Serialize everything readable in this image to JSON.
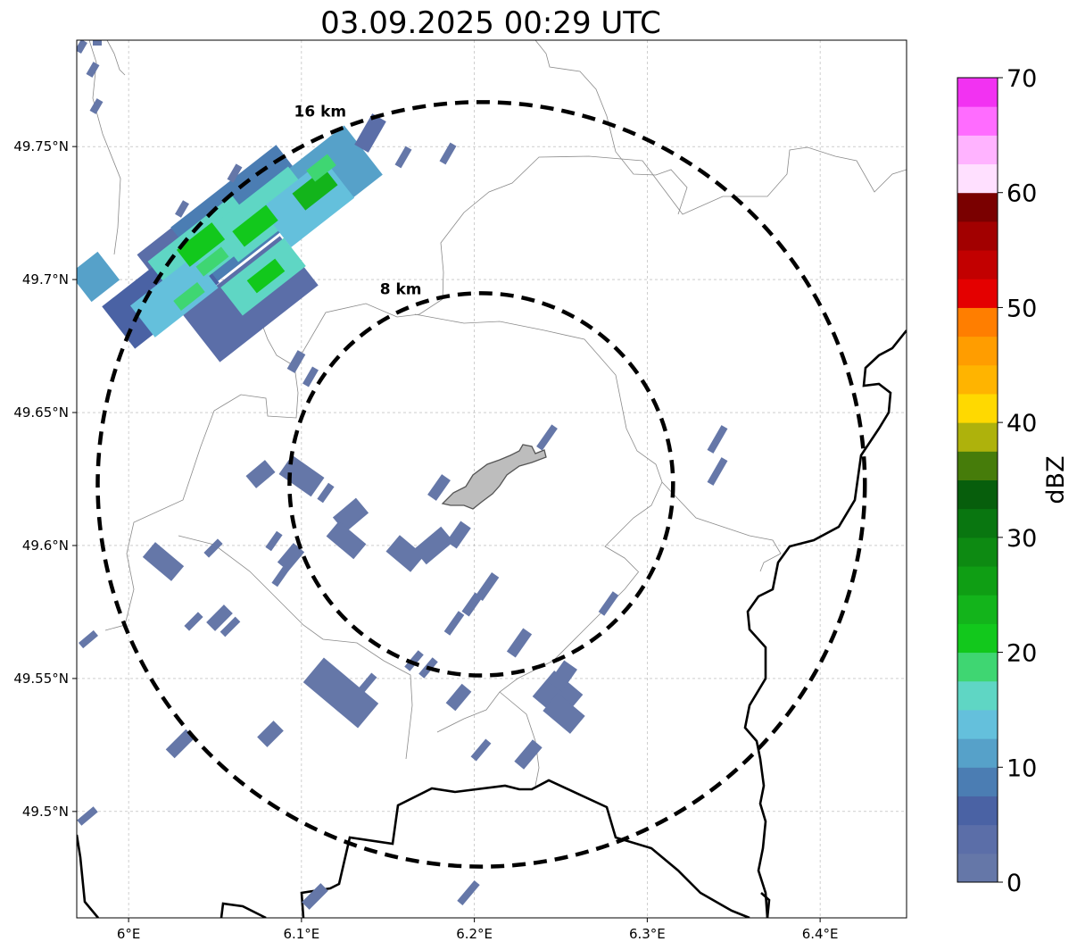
{
  "title": "03.09.2025 00:29 UTC",
  "colors": {
    "echo_weak": "#6577a8",
    "echo_mid": "#4f7fb4",
    "echo_cyan": "#5ec7c6",
    "echo_teal": "#5fd6bd",
    "echo_lightgreen": "#3fd46a",
    "echo_green": "#12c21b",
    "terrain_fill": "#bdbdbd",
    "range_ring": "#000000"
  },
  "map": {
    "lon_range": [
      5.97,
      6.45
    ],
    "lat_range": [
      49.46,
      49.79
    ],
    "lon_ticks": [
      {
        "value": 6.0,
        "label": "6°E"
      },
      {
        "value": 6.1,
        "label": "6.1°E"
      },
      {
        "value": 6.2,
        "label": "6.2°E"
      },
      {
        "value": 6.3,
        "label": "6.3°E"
      },
      {
        "value": 6.4,
        "label": "6.4°E"
      }
    ],
    "lat_ticks": [
      {
        "value": 49.5,
        "label": "49.5°N"
      },
      {
        "value": 49.55,
        "label": "49.55°N"
      },
      {
        "value": 49.6,
        "label": "49.6°N"
      },
      {
        "value": 49.65,
        "label": "49.65°N"
      },
      {
        "value": 49.7,
        "label": "49.7°N"
      },
      {
        "value": 49.75,
        "label": "49.75°N"
      }
    ],
    "gridlines": true,
    "radar_center": {
      "lon": 6.204,
      "lat": 49.623
    },
    "range_rings": [
      {
        "radius_km": 8,
        "label": "8 km"
      },
      {
        "radius_km": 16,
        "label": "16 km"
      }
    ]
  },
  "colorbar": {
    "label": "dBZ",
    "min": 0,
    "max": 70,
    "ticks": [
      0,
      10,
      20,
      30,
      40,
      50,
      60,
      70
    ],
    "colors": [
      "#6577a8",
      "#5b6ea8",
      "#4a62a4",
      "#4b7db3",
      "#56a1c9",
      "#64c0dc",
      "#5fd6c4",
      "#3fd672",
      "#12c81c",
      "#13b41b",
      "#0f9e14",
      "#0d8a12",
      "#097610",
      "#075e0c",
      "#467c0a",
      "#aeb20c",
      "#ffd900",
      "#ffb400",
      "#ff9d00",
      "#ff7e00",
      "#e40000",
      "#c20000",
      "#a20000",
      "#7a0000",
      "#ffe0ff",
      "#ffb3ff",
      "#ff6cff",
      "#f232f2"
    ]
  }
}
